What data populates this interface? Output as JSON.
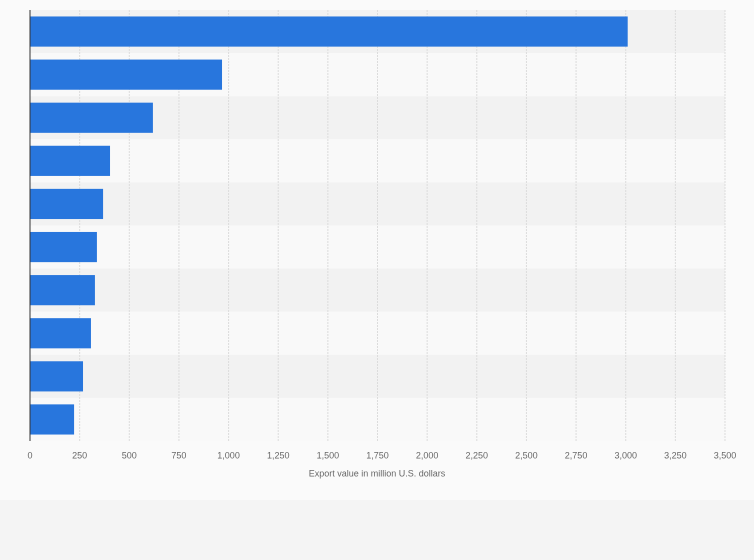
{
  "chart_data": {
    "type": "hbar",
    "x_label": "Export value in million U.S. dollars",
    "categories": [
      null,
      null,
      null,
      null,
      null,
      null,
      null,
      null,
      null,
      null
    ],
    "values": [
      3010,
      967,
      619,
      403,
      368,
      337,
      327,
      307,
      267,
      222
    ],
    "color": "#2876dd",
    "xlim": [
      0,
      3500
    ],
    "xticks": [
      0,
      250,
      500,
      750,
      {
        "value": 1000,
        "label": "1,000"
      },
      {
        "value": 1250,
        "label": "1,250"
      },
      {
        "value": 1500,
        "label": "1,500"
      },
      {
        "value": 1750,
        "label": "1,750"
      },
      {
        "value": 2000,
        "label": "2,000"
      },
      {
        "value": 2250,
        "label": "2,250"
      },
      {
        "value": 2500,
        "label": "2,500"
      },
      {
        "value": 2750,
        "label": "2,750"
      },
      {
        "value": 3000,
        "label": "3,000"
      },
      {
        "value": 3250,
        "label": "3,250"
      },
      {
        "value": 3500,
        "label": "3,500"
      }
    ],
    "grid": true
  }
}
